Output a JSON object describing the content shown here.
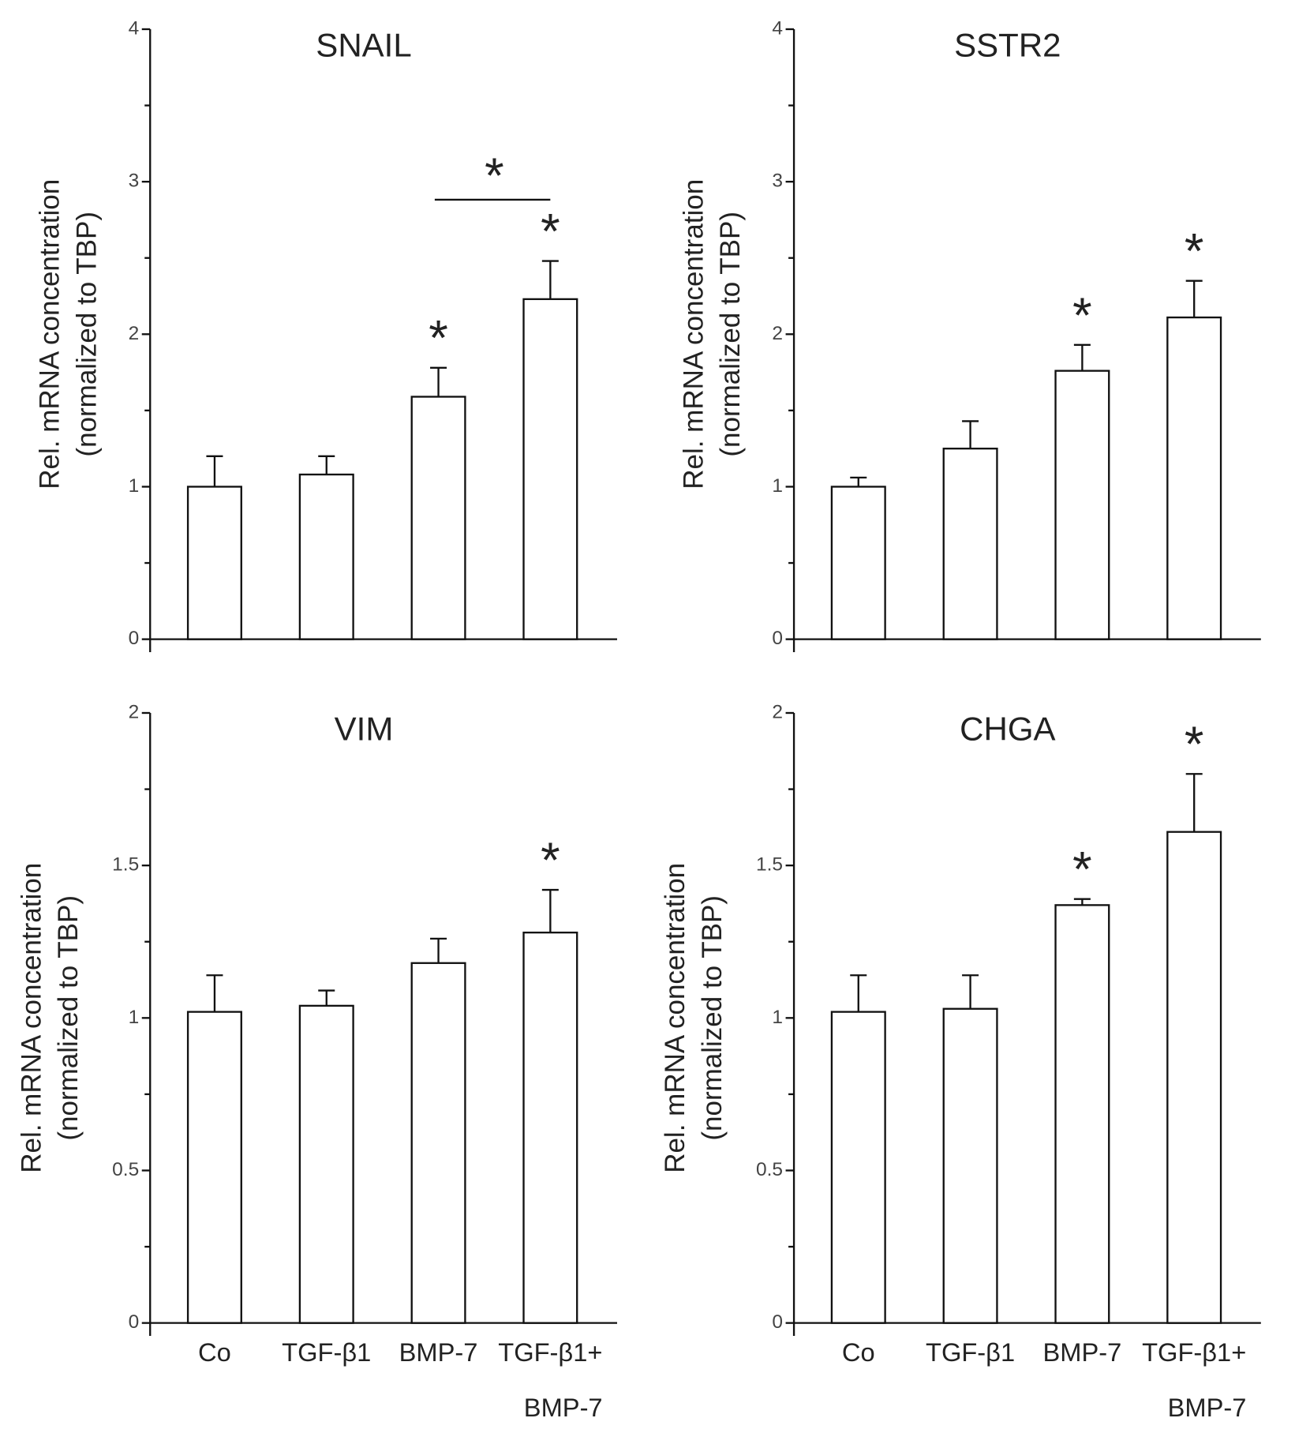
{
  "chart_data": [
    {
      "type": "bar",
      "title": "SNAIL",
      "ylabel": [
        "Rel. mRNA concentration",
        "(normalized to TBP)"
      ],
      "values": [
        1.0,
        1.08,
        1.59,
        2.23
      ],
      "errors": [
        0.2,
        0.12,
        0.19,
        0.25
      ],
      "significance": [
        null,
        null,
        "*",
        "*"
      ],
      "bracket": {
        "text": "*",
        "between": [
          2,
          3
        ]
      },
      "ylim": [
        0,
        4
      ],
      "yticks": [
        0,
        1,
        2,
        3,
        4
      ],
      "minor_yticks": [
        0.5,
        1.5,
        2.5,
        3.5
      ],
      "color": "#ffffff"
    },
    {
      "type": "bar",
      "title": "SSTR2",
      "ylabel": [
        "Rel. mRNA concentration",
        "(normalized to TBP)"
      ],
      "values": [
        1.0,
        1.25,
        1.76,
        2.11
      ],
      "errors": [
        0.06,
        0.18,
        0.17,
        0.24
      ],
      "significance": [
        null,
        null,
        "*",
        "*"
      ],
      "ylim": [
        0,
        4
      ],
      "yticks": [
        0,
        1,
        2,
        3,
        4
      ],
      "minor_yticks": [
        0.5,
        1.5,
        2.5,
        3.5
      ],
      "color": "#ffffff"
    },
    {
      "type": "bar",
      "title": "VIM",
      "ylabel": [
        "Rel. mRNA concentration",
        "(normalized to TBP)"
      ],
      "categories": [
        "Co",
        "TGF-β1",
        "BMP-7",
        [
          "TGF-β1+",
          "BMP-7"
        ]
      ],
      "values": [
        1.02,
        1.04,
        1.18,
        1.28
      ],
      "errors": [
        0.12,
        0.05,
        0.08,
        0.14
      ],
      "significance": [
        null,
        null,
        null,
        "*"
      ],
      "ylim": [
        0,
        2
      ],
      "yticks": [
        0,
        0.5,
        1,
        1.5,
        2
      ],
      "minor_yticks": [
        0.25,
        0.75,
        1.25,
        1.75
      ],
      "color": "#ffffff"
    },
    {
      "type": "bar",
      "title": "CHGA",
      "ylabel": [
        "Rel. mRNA concentration",
        "(normalized to TBP)"
      ],
      "categories": [
        "Co",
        "TGF-β1",
        "BMP-7",
        [
          "TGF-β1+",
          "BMP-7"
        ]
      ],
      "values": [
        1.02,
        1.03,
        1.37,
        1.61
      ],
      "errors": [
        0.12,
        0.11,
        0.02,
        0.19
      ],
      "significance": [
        null,
        null,
        "*",
        "*"
      ],
      "ylim": [
        0,
        2
      ],
      "yticks": [
        0,
        0.5,
        1,
        1.5,
        2
      ],
      "minor_yticks": [
        0.25,
        0.75,
        1.25,
        1.75
      ],
      "color": "#ffffff"
    }
  ]
}
